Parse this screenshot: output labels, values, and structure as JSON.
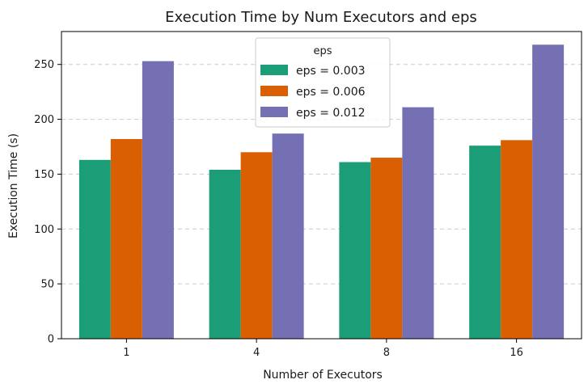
{
  "chart_data": {
    "type": "bar",
    "title": "Execution Time by Num Executors and eps",
    "xlabel": "Number of Executors",
    "ylabel": "Execution Time (s)",
    "categories": [
      "1",
      "4",
      "8",
      "16"
    ],
    "ylim": [
      0,
      280
    ],
    "yticks": [
      0,
      50,
      100,
      150,
      200,
      250
    ],
    "grid": "horizontal dashed",
    "legend": {
      "title": "eps",
      "placement": "top-center"
    },
    "series": [
      {
        "name": "eps = 0.003",
        "color": "#1b9e77",
        "values": [
          163,
          154,
          161,
          176
        ]
      },
      {
        "name": "eps = 0.006",
        "color": "#d95f02",
        "values": [
          182,
          170,
          165,
          181
        ]
      },
      {
        "name": "eps = 0.012",
        "color": "#7570b3",
        "values": [
          253,
          187,
          211,
          268
        ]
      }
    ]
  }
}
